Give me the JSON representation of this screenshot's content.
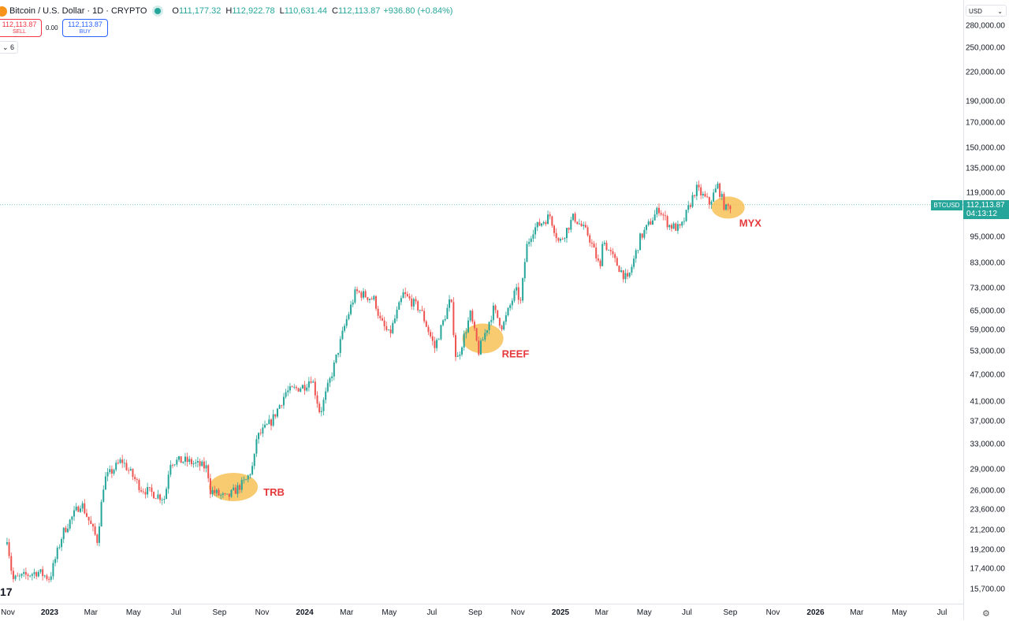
{
  "header": {
    "symbol_title": "Bitcoin / U.S. Dollar · 1D · CRYPTO",
    "open_label": "O",
    "open": "111,177.32",
    "high_label": "H",
    "high": "112,922.78",
    "low_label": "L",
    "low": "110,631.44",
    "close_label": "C",
    "close": "112,113.87",
    "change": "+936.80 (+0.84%)"
  },
  "trade": {
    "sell_price": "112,113.87",
    "sell_label": "SELL",
    "spread": "0.00",
    "buy_price": "112,113.87",
    "buy_label": "BUY"
  },
  "indicators_toggle": "⌄ 6",
  "currency": "USD",
  "last_price": {
    "symbol": "BTCUSD",
    "price": "112,113.87",
    "countdown": "04:13:12"
  },
  "partial_label": "17",
  "colors": {
    "up": "#26a69a",
    "down": "#ef5350",
    "highlight": "#f5b942",
    "annotation_text": "#e5383b"
  },
  "chart_data": {
    "type": "candlestick",
    "scale": "log",
    "price_ticks": [
      "280,000.00",
      "250,000.00",
      "220,000.00",
      "190,000.00",
      "170,000.00",
      "150,000.00",
      "135,000.00",
      "119,000.00",
      "95,000.00",
      "83,000.00",
      "73,000.00",
      "65,000.00",
      "59,000.00",
      "53,000.00",
      "47,000.00",
      "41,000.00",
      "37,000.00",
      "33,000.00",
      "29,000.00",
      "26,000.00",
      "23,600.00",
      "21,200.00",
      "19,200.00",
      "17,400.00",
      "15,700.00"
    ],
    "time_ticks": [
      {
        "label": "Nov",
        "year": false
      },
      {
        "label": "2023",
        "year": true
      },
      {
        "label": "Mar",
        "year": false
      },
      {
        "label": "May",
        "year": false
      },
      {
        "label": "Jul",
        "year": false
      },
      {
        "label": "Sep",
        "year": false
      },
      {
        "label": "Nov",
        "year": false
      },
      {
        "label": "2024",
        "year": true
      },
      {
        "label": "Mar",
        "year": false
      },
      {
        "label": "May",
        "year": false
      },
      {
        "label": "Jul",
        "year": false
      },
      {
        "label": "Sep",
        "year": false
      },
      {
        "label": "Nov",
        "year": false
      },
      {
        "label": "2025",
        "year": true
      },
      {
        "label": "Mar",
        "year": false
      },
      {
        "label": "May",
        "year": false
      },
      {
        "label": "Jul",
        "year": false
      },
      {
        "label": "Sep",
        "year": false
      },
      {
        "label": "Nov",
        "year": false
      },
      {
        "label": "2026",
        "year": true
      },
      {
        "label": "Mar",
        "year": false
      },
      {
        "label": "May",
        "year": false
      },
      {
        "label": "Jul",
        "year": false
      }
    ],
    "price_path": [
      [
        "2022-11-01",
        20500
      ],
      [
        "2022-11-09",
        16500
      ],
      [
        "2022-12-15",
        17200
      ],
      [
        "2023-01-01",
        16600
      ],
      [
        "2023-01-20",
        21000
      ],
      [
        "2023-02-15",
        24500
      ],
      [
        "2023-03-10",
        20200
      ],
      [
        "2023-03-20",
        27500
      ],
      [
        "2023-04-14",
        30400
      ],
      [
        "2023-05-12",
        26300
      ],
      [
        "2023-06-15",
        25000
      ],
      [
        "2023-06-22",
        30200
      ],
      [
        "2023-07-15",
        30300
      ],
      [
        "2023-08-15",
        29200
      ],
      [
        "2023-08-18",
        26100
      ],
      [
        "2023-09-11",
        25000
      ],
      [
        "2023-10-10",
        27500
      ],
      [
        "2023-10-20",
        29800
      ],
      [
        "2023-10-24",
        34000
      ],
      [
        "2023-11-15",
        37200
      ],
      [
        "2023-12-05",
        43000
      ],
      [
        "2024-01-01",
        44500
      ],
      [
        "2024-01-11",
        46500
      ],
      [
        "2024-01-23",
        38600
      ],
      [
        "2024-02-10",
        48000
      ],
      [
        "2024-02-28",
        61000
      ],
      [
        "2024-03-14",
        72000
      ],
      [
        "2024-04-10",
        69000
      ],
      [
        "2024-04-18",
        62000
      ],
      [
        "2024-05-01",
        57500
      ],
      [
        "2024-05-21",
        71000
      ],
      [
        "2024-06-15",
        65500
      ],
      [
        "2024-07-05",
        54000
      ],
      [
        "2024-07-28",
        69500
      ],
      [
        "2024-08-05",
        50000
      ],
      [
        "2024-08-25",
        64000
      ],
      [
        "2024-09-06",
        53000
      ],
      [
        "2024-09-27",
        65700
      ],
      [
        "2024-10-10",
        60000
      ],
      [
        "2024-10-29",
        72500
      ],
      [
        "2024-11-05",
        68000
      ],
      [
        "2024-11-13",
        90000
      ],
      [
        "2024-11-22",
        98500
      ],
      [
        "2024-12-17",
        106000
      ],
      [
        "2024-12-30",
        92000
      ],
      [
        "2025-01-20",
        105500
      ],
      [
        "2025-02-10",
        96000
      ],
      [
        "2025-02-28",
        80000
      ],
      [
        "2025-03-02",
        94000
      ],
      [
        "2025-03-20",
        84000
      ],
      [
        "2025-04-07",
        76000
      ],
      [
        "2025-04-25",
        94500
      ],
      [
        "2025-05-22",
        110000
      ],
      [
        "2025-06-05",
        101000
      ],
      [
        "2025-06-22",
        99000
      ],
      [
        "2025-07-14",
        122000
      ],
      [
        "2025-08-02",
        113000
      ],
      [
        "2025-08-14",
        123500
      ],
      [
        "2025-08-25",
        109500
      ],
      [
        "2025-09-03",
        112100
      ]
    ],
    "annotations": [
      {
        "label": "TRB",
        "date": "2023-09-21",
        "price": 26500
      },
      {
        "label": "REEF",
        "date": "2024-09-12",
        "price": 56600
      },
      {
        "label": "MYX",
        "date": "2025-08-29",
        "price": 110500
      }
    ]
  }
}
